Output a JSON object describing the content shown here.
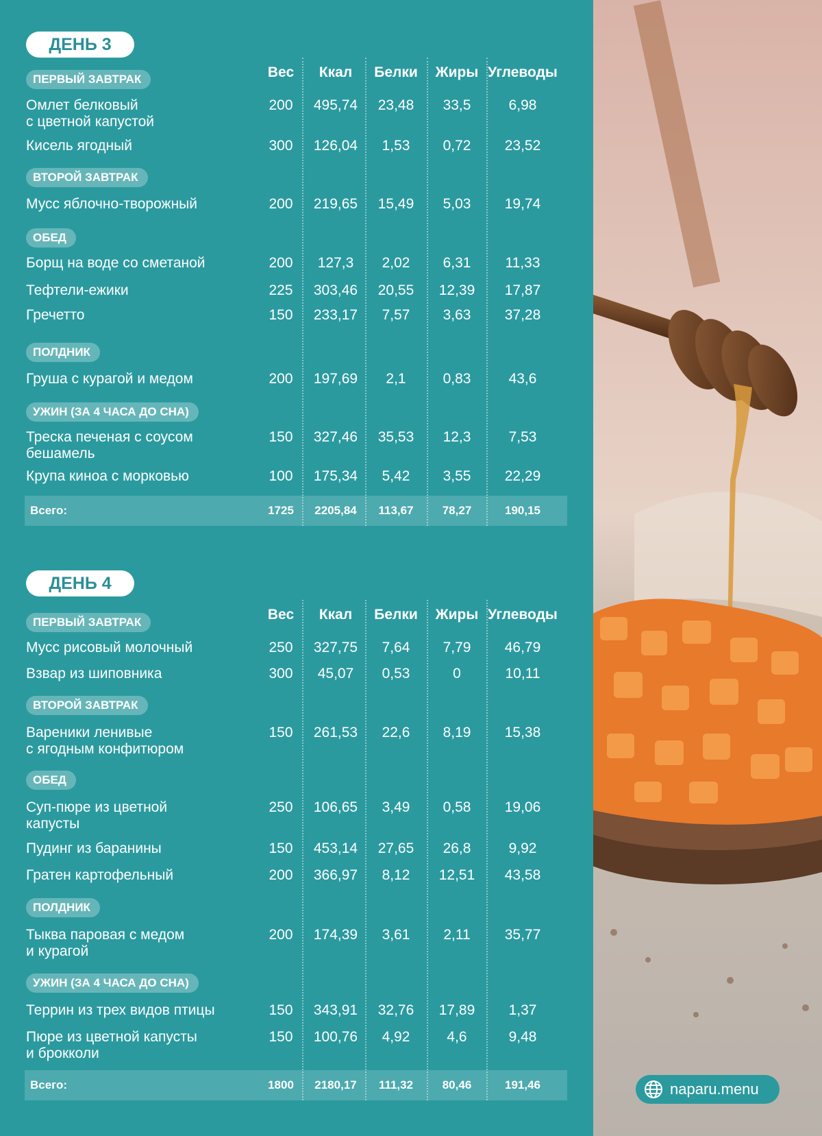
{
  "days": [
    {
      "title": "ДЕНЬ 3",
      "headers": [
        "Вес",
        "Ккал",
        "Белки",
        "Жиры",
        "Углеводы"
      ],
      "sections": [
        {
          "label": "ПЕРВЫЙ ЗАВТРАК",
          "rows": [
            [
              "Омлет белковый\nс цветной капустой",
              "200",
              "495,74",
              "23,48",
              "33,5",
              "6,98"
            ],
            [
              "Кисель ягодный",
              "300",
              "126,04",
              "1,53",
              "0,72",
              "23,52"
            ]
          ]
        },
        {
          "label": "ВТОРОЙ ЗАВТРАК",
          "rows": [
            [
              "Мусс яблочно-творожный",
              "200",
              "219,65",
              "15,49",
              "5,03",
              "19,74"
            ]
          ]
        },
        {
          "label": "ОБЕД",
          "rows": [
            [
              "Борщ на воде со сметаной",
              "200",
              "127,3",
              "2,02",
              "6,31",
              "11,33"
            ],
            [
              "Тефтели-ежики",
              "225",
              "303,46",
              "20,55",
              "12,39",
              "17,87"
            ],
            [
              "Гречетто",
              "150",
              "233,17",
              "7,57",
              "3,63",
              "37,28"
            ]
          ]
        },
        {
          "label": "ПОЛДНИК",
          "rows": [
            [
              "Груша с курагой и медом",
              "200",
              "197,69",
              "2,1",
              "0,83",
              "43,6"
            ]
          ]
        },
        {
          "label": "УЖИН (ЗА 4 ЧАСА ДО СНА)",
          "rows": [
            [
              "Треска печеная с соусом\nбешамель",
              "150",
              "327,46",
              "35,53",
              "12,3",
              "7,53"
            ],
            [
              "Крупа киноа с морковью",
              "100",
              "175,34",
              "5,42",
              "3,55",
              "22,29"
            ]
          ]
        }
      ],
      "total": [
        "Всего:",
        "1725",
        "2205,84",
        "113,67",
        "78,27",
        "190,15"
      ]
    },
    {
      "title": "ДЕНЬ 4",
      "headers": [
        "Вес",
        "Ккал",
        "Белки",
        "Жиры",
        "Углеводы"
      ],
      "sections": [
        {
          "label": "ПЕРВЫЙ ЗАВТРАК",
          "rows": [
            [
              "Мусс рисовый молочный",
              "250",
              "327,75",
              "7,64",
              "7,79",
              "46,79"
            ],
            [
              "Взвар из шиповника",
              "300",
              "45,07",
              "0,53",
              "0",
              "10,11"
            ]
          ]
        },
        {
          "label": "ВТОРОЙ ЗАВТРАК",
          "rows": [
            [
              "Вареники ленивые\nс ягодным конфитюром",
              "150",
              "261,53",
              "22,6",
              "8,19",
              "15,38"
            ]
          ]
        },
        {
          "label": "ОБЕД",
          "rows": [
            [
              "Суп-пюре из цветной\nкапусты",
              "250",
              "106,65",
              "3,49",
              "0,58",
              "19,06"
            ],
            [
              "Пудинг из баранины",
              "150",
              "453,14",
              "27,65",
              "26,8",
              "9,92"
            ],
            [
              "Гратен картофельный",
              "200",
              "366,97",
              "8,12",
              "12,51",
              "43,58"
            ]
          ]
        },
        {
          "label": "ПОЛДНИК",
          "rows": [
            [
              "Тыква паровая с медом\nи курагой",
              "200",
              "174,39",
              "3,61",
              "2,11",
              "35,77"
            ]
          ]
        },
        {
          "label": "УЖИН (ЗА 4 ЧАСА ДО СНА)",
          "rows": [
            [
              "Террин из трех видов птицы",
              "150",
              "343,91",
              "32,76",
              "17,89",
              "1,37"
            ],
            [
              "Пюре из цветной капусты\nи брокколи",
              "150",
              "100,76",
              "4,92",
              "4,6",
              "9,48"
            ]
          ]
        }
      ],
      "total": [
        "Всего:",
        "1800",
        "2180,17",
        "111,32",
        "80,46",
        "191,46"
      ]
    }
  ],
  "badge": "naparu.menu"
}
